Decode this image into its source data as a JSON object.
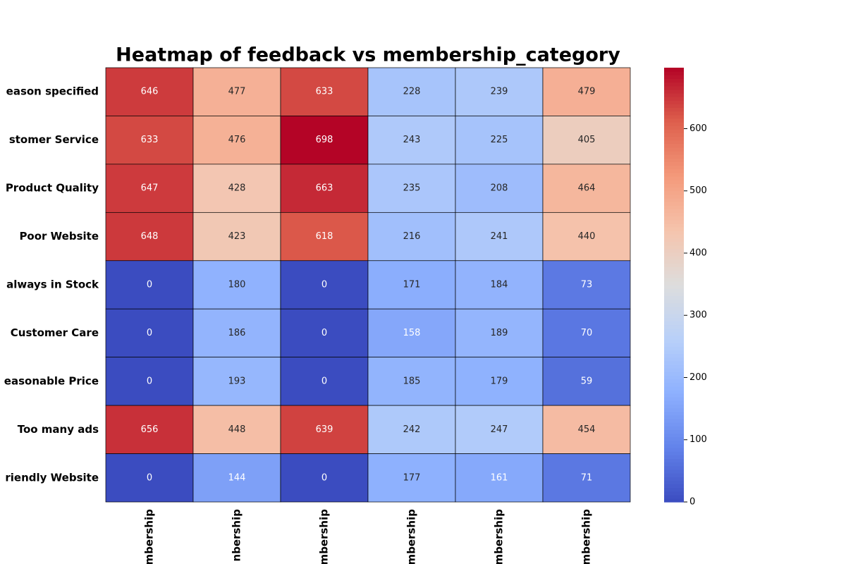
{
  "chart_data": {
    "type": "heatmap",
    "title": "Heatmap of feedback vs membership_category",
    "x_categories": [
      "mbership",
      "nbership",
      "mbership",
      "mbership",
      "mbership",
      "mbership"
    ],
    "y_categories": [
      "eason specified",
      "stomer Service",
      "Product Quality",
      "Poor Website",
      "always in Stock",
      "Customer Care",
      "easonable Price",
      "Too many ads",
      "riendly Website"
    ],
    "values": [
      [
        646,
        477,
        633,
        228,
        239,
        479
      ],
      [
        633,
        476,
        698,
        243,
        225,
        405
      ],
      [
        647,
        428,
        663,
        235,
        208,
        464
      ],
      [
        648,
        423,
        618,
        216,
        241,
        440
      ],
      [
        0,
        180,
        0,
        171,
        184,
        73
      ],
      [
        0,
        186,
        0,
        158,
        189,
        70
      ],
      [
        0,
        193,
        0,
        185,
        179,
        59
      ],
      [
        656,
        448,
        639,
        242,
        247,
        454
      ],
      [
        0,
        144,
        0,
        177,
        161,
        71
      ]
    ],
    "colormap": "coolwarm",
    "clim": [
      0,
      698
    ],
    "cticks": [
      0,
      100,
      200,
      300,
      400,
      500,
      600
    ]
  }
}
